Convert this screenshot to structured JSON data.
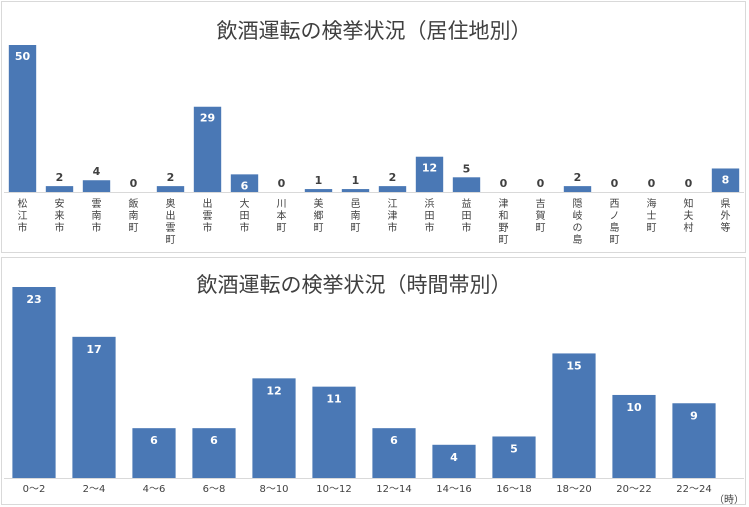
{
  "chart_data": [
    {
      "type": "bar",
      "title": "飲酒運転の検挙状況（居住地別）",
      "categories": [
        "松江市",
        "安来市",
        "雲南市",
        "飯南町",
        "奥出雲町",
        "出雲市",
        "大田市",
        "川本町",
        "美郷町",
        "邑南町",
        "江津市",
        "浜田市",
        "益田市",
        "津和野町",
        "吉賀町",
        "隠岐の島",
        "西ノ島町",
        "海士町",
        "知夫村",
        "県外等"
      ],
      "values": [
        50,
        2,
        4,
        0,
        2,
        29,
        6,
        0,
        1,
        1,
        2,
        12,
        5,
        0,
        0,
        2,
        0,
        0,
        0,
        8
      ],
      "ylim": [
        0,
        55
      ],
      "grid": false,
      "bar_color": "#4a78b5",
      "label_style": "inside-top-white-or-above-dark"
    },
    {
      "type": "bar",
      "title": "飲酒運転の検挙状況（時間帯別）",
      "categories": [
        "0～2",
        "2～4",
        "4～6",
        "6～8",
        "8～10",
        "10～12",
        "12～14",
        "14～16",
        "16～18",
        "18～20",
        "20～22",
        "22～24"
      ],
      "values": [
        23,
        17,
        6,
        6,
        12,
        11,
        6,
        4,
        5,
        15,
        10,
        9
      ],
      "ylim": [
        0,
        25
      ],
      "xunit": "（時）",
      "grid": false,
      "bar_color": "#4a78b5"
    }
  ]
}
